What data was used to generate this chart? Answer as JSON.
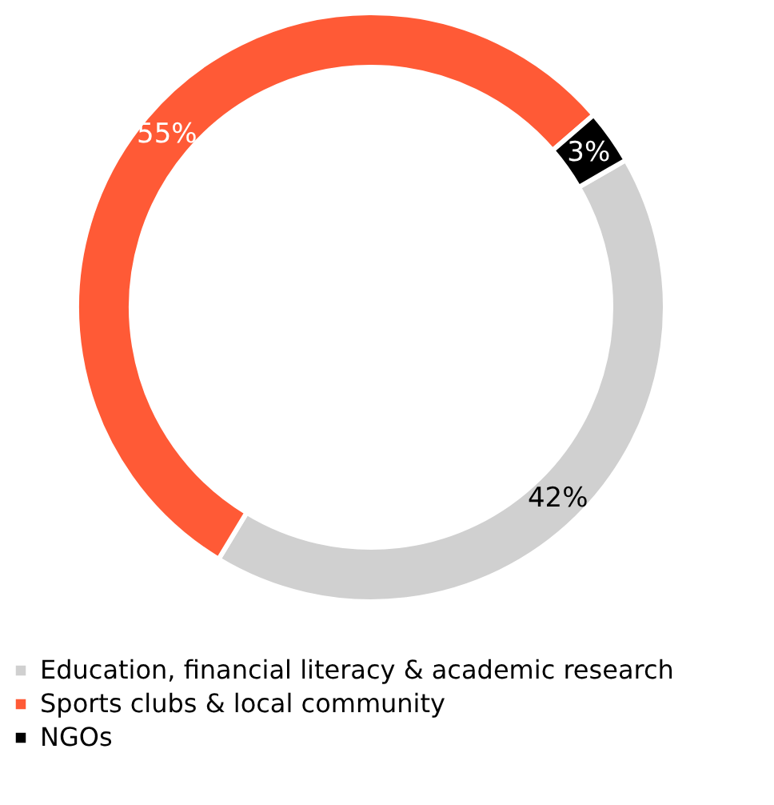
{
  "chart_data": {
    "type": "donut",
    "categories": [
      "Education, financial literacy & academic research",
      "Sports clubs & local community",
      "NGOs"
    ],
    "values": [
      42,
      55,
      3
    ],
    "colors": [
      "#d0d0d0",
      "#ff5a36",
      "#000000"
    ],
    "value_labels": [
      "42%",
      "55%",
      "3%"
    ],
    "legend": "bottom left"
  }
}
